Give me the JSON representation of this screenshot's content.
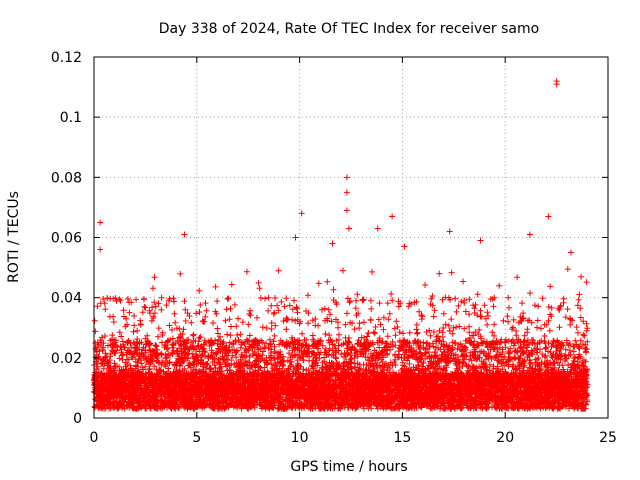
{
  "chart_data": {
    "type": "scatter",
    "title": "Day 338 of 2024, Rate Of TEC Index for receiver samo",
    "xlabel": "GPS time / hours",
    "ylabel": "ROTI / TECUs",
    "xlim": [
      0,
      25
    ],
    "ylim": [
      0,
      0.12
    ],
    "xticks": [
      0,
      5,
      10,
      15,
      20,
      25
    ],
    "yticks": [
      0,
      0.02,
      0.04,
      0.06,
      0.08,
      0.1,
      0.12
    ],
    "xtick_labels": [
      "0",
      "5",
      "10",
      "15",
      "20",
      "25"
    ],
    "ytick_labels": [
      "0",
      "0.02",
      "0.04",
      "0.06",
      "0.08",
      "0.1",
      "0.12"
    ],
    "grid": true,
    "marker": "+",
    "color": "#ff0000",
    "series": [
      {
        "name": "ROTI",
        "notable_points": [
          {
            "x": 0.3,
            "y": 0.065
          },
          {
            "x": 0.3,
            "y": 0.056
          },
          {
            "x": 4.4,
            "y": 0.061
          },
          {
            "x": 9.8,
            "y": 0.06
          },
          {
            "x": 10.1,
            "y": 0.068
          },
          {
            "x": 11.6,
            "y": 0.058
          },
          {
            "x": 12.3,
            "y": 0.08
          },
          {
            "x": 12.3,
            "y": 0.075
          },
          {
            "x": 12.3,
            "y": 0.069
          },
          {
            "x": 12.4,
            "y": 0.063
          },
          {
            "x": 13.8,
            "y": 0.063
          },
          {
            "x": 14.5,
            "y": 0.067
          },
          {
            "x": 15.1,
            "y": 0.057
          },
          {
            "x": 17.3,
            "y": 0.062
          },
          {
            "x": 18.8,
            "y": 0.059
          },
          {
            "x": 21.2,
            "y": 0.061
          },
          {
            "x": 22.1,
            "y": 0.067
          },
          {
            "x": 22.5,
            "y": 0.112
          },
          {
            "x": 22.5,
            "y": 0.111
          },
          {
            "x": 23.2,
            "y": 0.055
          }
        ]
      }
    ]
  }
}
